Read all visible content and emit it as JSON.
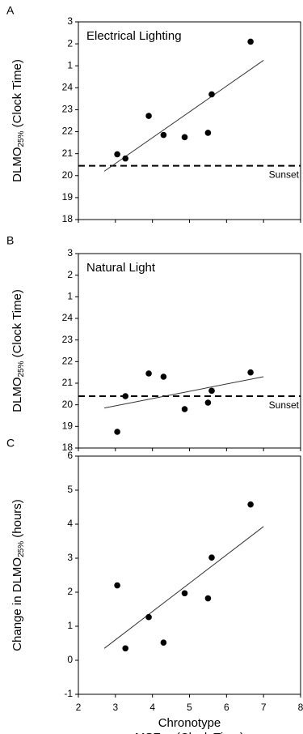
{
  "chart_data": [
    {
      "type": "scatter",
      "panel_label": "A",
      "title": "Electrical Lighting",
      "ylabel": {
        "main": "DLMO",
        "sub": "25%",
        "rest": " (Clock Time)"
      },
      "x": [
        3.05,
        3.27,
        3.9,
        4.3,
        4.87,
        5.5,
        5.6,
        6.65
      ],
      "values": [
        20.97,
        20.78,
        22.72,
        21.85,
        21.75,
        21.95,
        23.7,
        26.1
      ],
      "color": "#000000",
      "fit_line": {
        "x": [
          2.7,
          7
        ],
        "y": [
          20.2,
          25.25
        ]
      },
      "hline": {
        "value": 20.45,
        "label": "Sunset"
      },
      "xlim": [
        2,
        8
      ],
      "xticks": [
        2,
        3,
        4,
        5,
        6,
        7,
        8
      ],
      "show_xtick_labels": false,
      "ylim": [
        18,
        27
      ],
      "yticks": [
        18,
        19,
        20,
        21,
        22,
        23,
        24,
        {
          "value": 25,
          "label": "1"
        },
        {
          "value": 26,
          "label": "2"
        },
        {
          "value": 27,
          "label": "3"
        }
      ]
    },
    {
      "type": "scatter",
      "panel_label": "B",
      "title": "Natural Light",
      "ylabel": {
        "main": "DLMO",
        "sub": "25%",
        "rest": " (Clock Time)"
      },
      "x": [
        3.05,
        3.27,
        3.9,
        4.3,
        4.87,
        5.5,
        5.6,
        6.65
      ],
      "values": [
        18.75,
        20.4,
        21.45,
        21.3,
        19.8,
        20.1,
        20.65,
        21.5
      ],
      "color": "#000000",
      "fit_line": {
        "x": [
          2.7,
          7
        ],
        "y": [
          19.85,
          21.3
        ]
      },
      "hline": {
        "value": 20.4,
        "label": "Sunset"
      },
      "xlim": [
        2,
        8
      ],
      "xticks": [
        2,
        3,
        4,
        5,
        6,
        7,
        8
      ],
      "show_xtick_labels": false,
      "ylim": [
        18,
        27
      ],
      "yticks": [
        18,
        19,
        20,
        21,
        22,
        23,
        24,
        {
          "value": 25,
          "label": "1"
        },
        {
          "value": 26,
          "label": "2"
        },
        {
          "value": 27,
          "label": "3"
        }
      ]
    },
    {
      "type": "scatter",
      "panel_label": "C",
      "ylabel": {
        "main": "Change in DLMO",
        "sub": "25%",
        "rest": " (hours)"
      },
      "xlabel": [
        "Chronotype",
        "MSFsc (Clock Time)"
      ],
      "x": [
        3.05,
        3.27,
        3.9,
        4.3,
        4.87,
        5.5,
        5.6,
        6.65
      ],
      "values": [
        2.2,
        0.35,
        1.27,
        0.52,
        1.97,
        1.82,
        3.02,
        4.58
      ],
      "color": "#000000",
      "fit_line": {
        "x": [
          2.7,
          7
        ],
        "y": [
          0.35,
          3.93
        ]
      },
      "xlim": [
        2,
        8
      ],
      "xticks": [
        2,
        3,
        4,
        5,
        6,
        7,
        8
      ],
      "show_xtick_labels": true,
      "ylim": [
        -1,
        6
      ],
      "yticks": [
        -1,
        0,
        1,
        2,
        3,
        4,
        5,
        6
      ]
    }
  ]
}
